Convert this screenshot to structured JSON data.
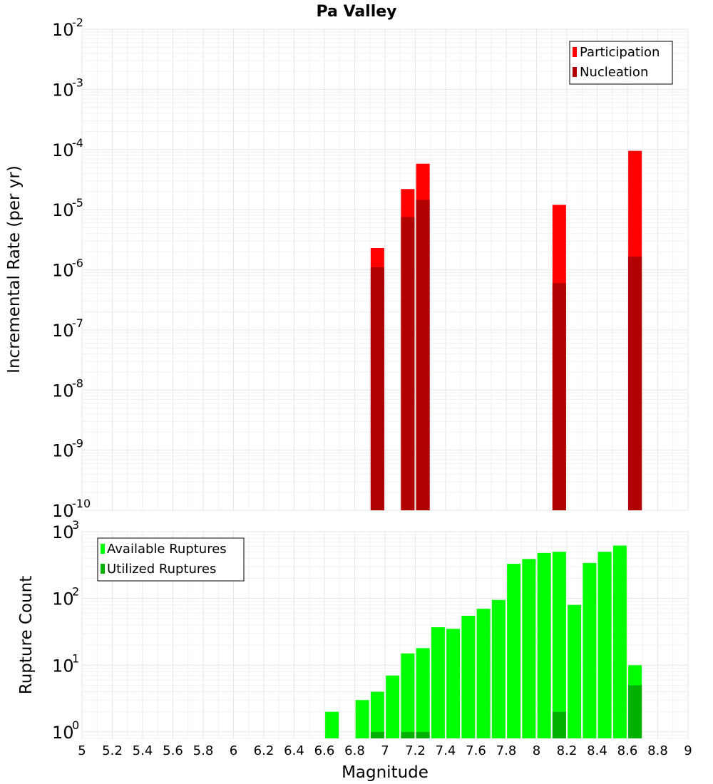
{
  "chart_data": {
    "type": "bar",
    "title": "Pa Valley",
    "xlabel": "Magnitude",
    "xlim": [
      5,
      9
    ],
    "x_ticks": [
      "5",
      "5.2",
      "5.4",
      "5.6",
      "5.8",
      "6",
      "6.2",
      "6.4",
      "6.6",
      "6.8",
      "7",
      "7.2",
      "7.4",
      "7.6",
      "7.8",
      "8",
      "8.2",
      "8.4",
      "8.6",
      "8.8",
      "9"
    ],
    "panels": [
      {
        "ylabel": "Incremental Rate (per yr)",
        "y_scale": "log",
        "ylim": [
          1e-10,
          0.01
        ],
        "y_ticks": [
          {
            "base": "10",
            "exp": "-10"
          },
          {
            "base": "10",
            "exp": "-9"
          },
          {
            "base": "10",
            "exp": "-8"
          },
          {
            "base": "10",
            "exp": "-7"
          },
          {
            "base": "10",
            "exp": "-6"
          },
          {
            "base": "10",
            "exp": "-5"
          },
          {
            "base": "10",
            "exp": "-4"
          },
          {
            "base": "10",
            "exp": "-3"
          },
          {
            "base": "10",
            "exp": "-2"
          }
        ],
        "legend_position": "top-right",
        "series": [
          {
            "name": "Participation",
            "color": "#ff0000",
            "points": [
              {
                "x": 6.95,
                "y": 2.3e-06
              },
              {
                "x": 7.15,
                "y": 2.2e-05
              },
              {
                "x": 7.25,
                "y": 5.8e-05
              },
              {
                "x": 8.15,
                "y": 1.2e-05
              },
              {
                "x": 8.65,
                "y": 9.5e-05
              }
            ]
          },
          {
            "name": "Nucleation",
            "color": "#b00000",
            "points": [
              {
                "x": 6.95,
                "y": 1.1e-06
              },
              {
                "x": 7.15,
                "y": 7.5e-06
              },
              {
                "x": 7.25,
                "y": 1.45e-05
              },
              {
                "x": 8.15,
                "y": 6e-07
              },
              {
                "x": 8.65,
                "y": 1.65e-06
              }
            ]
          }
        ]
      },
      {
        "ylabel": "Rupture Count",
        "y_scale": "log",
        "ylim": [
          0.8,
          1000
        ],
        "y_ticks": [
          {
            "base": "10",
            "exp": "0",
            "value": 1
          },
          {
            "base": "10",
            "exp": "1",
            "value": 10
          },
          {
            "base": "10",
            "exp": "2",
            "value": 100
          },
          {
            "base": "10",
            "exp": "3",
            "value": 1000
          }
        ],
        "legend_position": "top-left",
        "series": [
          {
            "name": "Available Ruptures",
            "color": "#00ff00",
            "points": [
              {
                "x": 6.65,
                "y": 2
              },
              {
                "x": 6.85,
                "y": 3
              },
              {
                "x": 6.95,
                "y": 4
              },
              {
                "x": 7.05,
                "y": 7
              },
              {
                "x": 7.15,
                "y": 15
              },
              {
                "x": 7.25,
                "y": 18
              },
              {
                "x": 7.35,
                "y": 37
              },
              {
                "x": 7.45,
                "y": 35
              },
              {
                "x": 7.55,
                "y": 55
              },
              {
                "x": 7.65,
                "y": 70
              },
              {
                "x": 7.75,
                "y": 95
              },
              {
                "x": 7.85,
                "y": 330
              },
              {
                "x": 7.95,
                "y": 390
              },
              {
                "x": 8.05,
                "y": 480
              },
              {
                "x": 8.15,
                "y": 500
              },
              {
                "x": 8.25,
                "y": 80
              },
              {
                "x": 8.35,
                "y": 340
              },
              {
                "x": 8.45,
                "y": 500
              },
              {
                "x": 8.55,
                "y": 620
              },
              {
                "x": 8.65,
                "y": 10
              }
            ]
          },
          {
            "name": "Utilized Ruptures",
            "color": "#00b000",
            "points": [
              {
                "x": 6.95,
                "y": 1
              },
              {
                "x": 7.15,
                "y": 1
              },
              {
                "x": 7.25,
                "y": 1
              },
              {
                "x": 8.15,
                "y": 2
              },
              {
                "x": 8.65,
                "y": 5
              }
            ]
          }
        ]
      }
    ]
  }
}
